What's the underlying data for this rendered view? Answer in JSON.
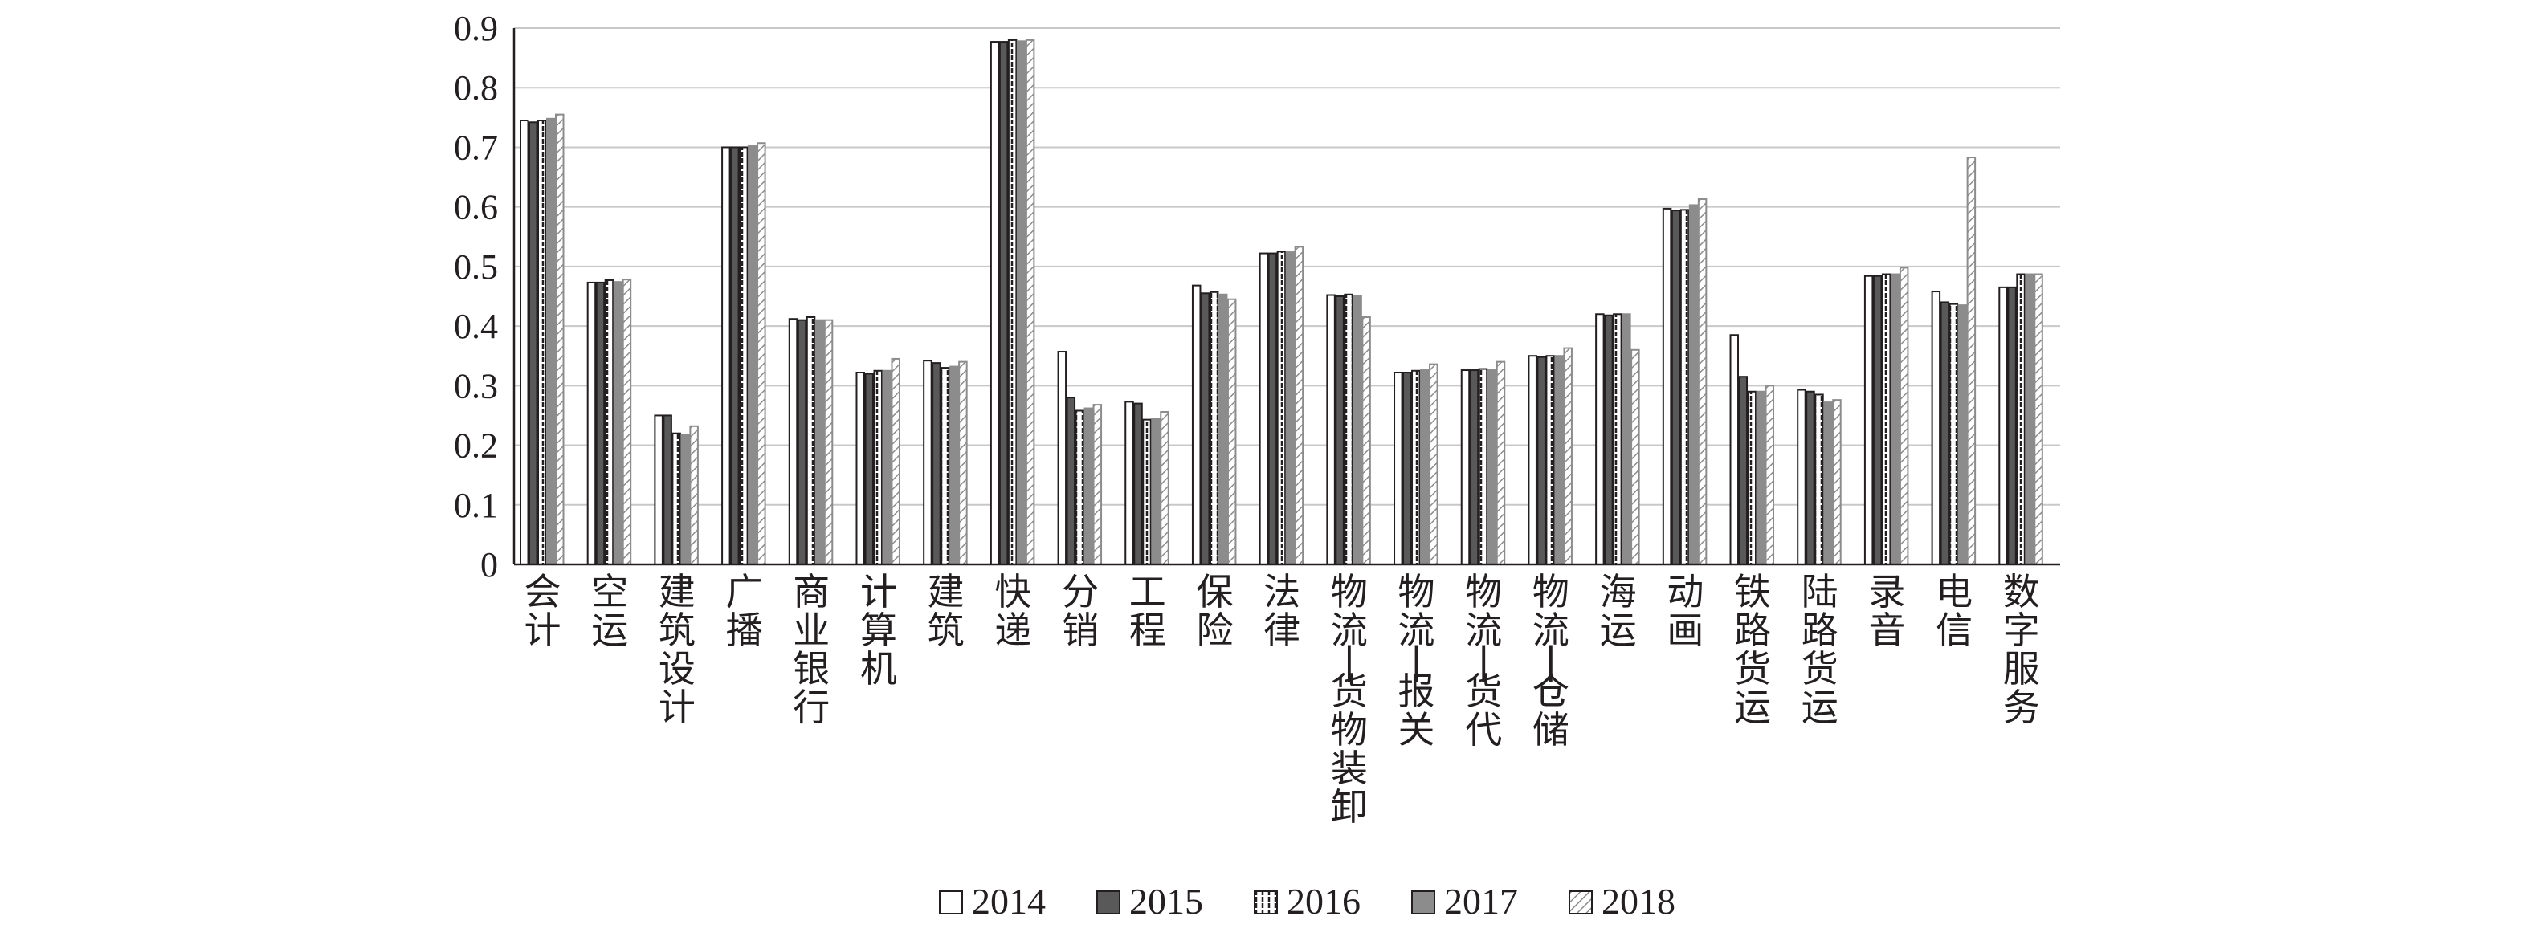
{
  "chart_data": {
    "type": "bar",
    "title": "",
    "xlabel": "",
    "ylabel": "",
    "ylim": [
      0,
      0.9
    ],
    "yticks": [
      "0",
      "0.1",
      "0.2",
      "0.3",
      "0.4",
      "0.5",
      "0.6",
      "0.7",
      "0.8",
      "0.9"
    ],
    "grid": true,
    "legend_position": "bottom",
    "categories": [
      "会计",
      "空运",
      "建筑设计",
      "广播",
      "商业银行",
      "计算机",
      "建筑",
      "快递",
      "分销",
      "工程",
      "保险",
      "法律",
      "物流-货物装卸",
      "物流-报关",
      "物流-货代",
      "物流-仓储",
      "海运",
      "动画",
      "铁路货运",
      "陆路货运",
      "录音",
      "电信",
      "数字服务"
    ],
    "series": [
      {
        "name": "2014",
        "values": [
          0.745,
          0.473,
          0.25,
          0.7,
          0.412,
          0.322,
          0.342,
          0.877,
          0.357,
          0.273,
          0.468,
          0.522,
          0.452,
          0.322,
          0.326,
          0.35,
          0.42,
          0.597,
          0.385,
          0.293,
          0.484,
          0.458,
          0.465
        ]
      },
      {
        "name": "2015",
        "values": [
          0.742,
          0.473,
          0.25,
          0.7,
          0.41,
          0.32,
          0.338,
          0.877,
          0.28,
          0.27,
          0.455,
          0.522,
          0.45,
          0.322,
          0.326,
          0.348,
          0.418,
          0.594,
          0.315,
          0.29,
          0.484,
          0.44,
          0.465
        ]
      },
      {
        "name": "2016",
        "values": [
          0.745,
          0.477,
          0.22,
          0.7,
          0.415,
          0.325,
          0.33,
          0.88,
          0.258,
          0.243,
          0.457,
          0.525,
          0.453,
          0.325,
          0.328,
          0.35,
          0.42,
          0.595,
          0.29,
          0.285,
          0.487,
          0.437,
          0.487
        ]
      },
      {
        "name": "2017",
        "values": [
          0.748,
          0.474,
          0.218,
          0.703,
          0.41,
          0.325,
          0.332,
          0.878,
          0.262,
          0.244,
          0.453,
          0.524,
          0.45,
          0.326,
          0.326,
          0.35,
          0.42,
          0.603,
          0.29,
          0.272,
          0.487,
          0.435,
          0.487
        ]
      },
      {
        "name": "2018",
        "values": [
          0.755,
          0.478,
          0.232,
          0.707,
          0.41,
          0.345,
          0.34,
          0.88,
          0.268,
          0.256,
          0.445,
          0.533,
          0.415,
          0.336,
          0.34,
          0.363,
          0.36,
          0.613,
          0.3,
          0.276,
          0.498,
          0.683,
          0.487
        ]
      }
    ],
    "colors": {
      "2014": "#ffffff",
      "2015": "#595959",
      "2016": "#ffffff",
      "2017": "#8c8c8c",
      "2018": "#ffffff",
      "outline": "#231f20",
      "outline_light": "#8c8c8c",
      "grid": "#c8c8c8",
      "axis": "#231f20"
    }
  }
}
